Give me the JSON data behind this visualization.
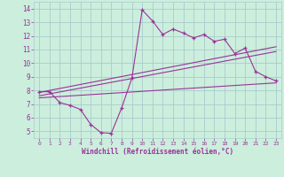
{
  "xlabel": "Windchill (Refroidissement éolien,°C)",
  "bg_color": "#cceedd",
  "grid_color": "#aacccc",
  "line_color": "#993399",
  "x_ticks": [
    0,
    1,
    2,
    3,
    4,
    5,
    6,
    7,
    8,
    9,
    10,
    11,
    12,
    13,
    14,
    15,
    16,
    17,
    18,
    19,
    20,
    21,
    22,
    23
  ],
  "y_ticks": [
    5,
    6,
    7,
    8,
    9,
    10,
    11,
    12,
    13,
    14
  ],
  "xlim": [
    -0.5,
    23.5
  ],
  "ylim": [
    4.5,
    14.5
  ],
  "main_line": {
    "x": [
      0,
      1,
      2,
      3,
      4,
      5,
      6,
      7,
      8,
      9,
      10,
      11,
      12,
      13,
      14,
      15,
      16,
      17,
      18,
      19,
      20,
      21,
      22,
      23
    ],
    "y": [
      7.9,
      7.9,
      7.1,
      6.9,
      6.6,
      5.5,
      4.9,
      4.85,
      6.7,
      8.9,
      13.9,
      13.1,
      12.1,
      12.5,
      12.2,
      11.85,
      12.1,
      11.6,
      11.75,
      10.7,
      11.1,
      9.4,
      9.0,
      8.7
    ]
  },
  "linear_line1": {
    "x": [
      0,
      23
    ],
    "y": [
      7.85,
      11.2
    ]
  },
  "linear_line2": {
    "x": [
      0,
      23
    ],
    "y": [
      7.6,
      10.85
    ]
  },
  "linear_line3": {
    "x": [
      0,
      23
    ],
    "y": [
      7.45,
      8.55
    ]
  }
}
